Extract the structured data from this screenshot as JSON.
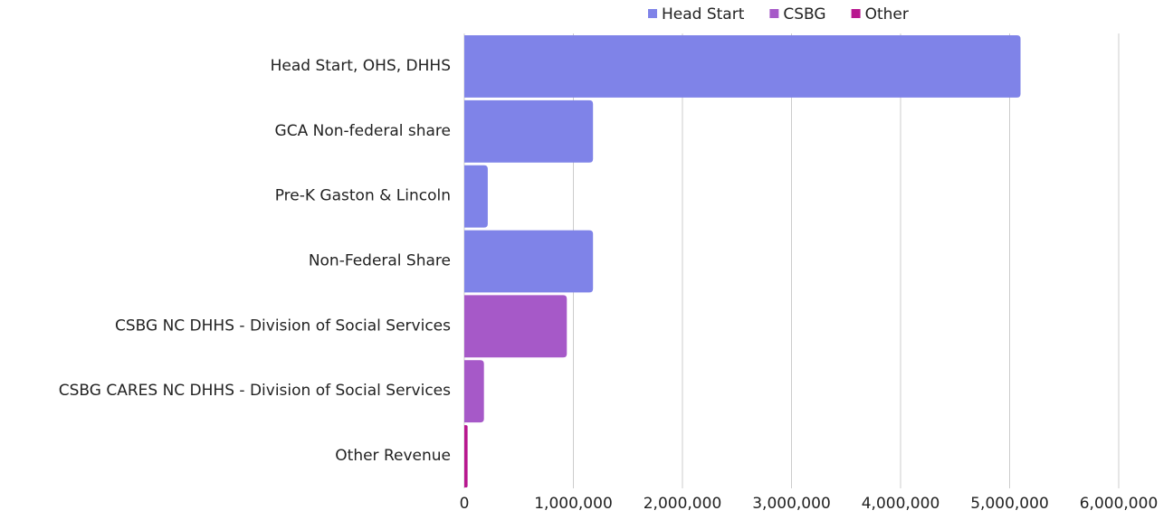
{
  "chart_data": {
    "type": "hbar",
    "categories": [
      "Head Start, OHS, DHHS",
      "GCA Non-federal share",
      "Pre-K Gaston & Lincoln",
      "Non-Federal Share",
      "CSBG NC DHHS - Division of Social Services",
      "CSBG CARES NC DHHS - Division of Social Services",
      "Other Revenue"
    ],
    "series": [
      {
        "name": "Head Start",
        "color": "#7f83e8",
        "values": [
          5100000,
          1180000,
          215000,
          1180000,
          null,
          null,
          null
        ]
      },
      {
        "name": "CSBG",
        "color": "#a659c8",
        "values": [
          null,
          null,
          null,
          null,
          940000,
          180000,
          null
        ]
      },
      {
        "name": "Other",
        "color": "#b8178f",
        "values": [
          null,
          null,
          null,
          null,
          null,
          null,
          30000
        ]
      }
    ],
    "xlim": [
      0,
      6000000
    ],
    "xticks": [
      0,
      {
        "value": 1000000,
        "label": "1,000,000"
      },
      {
        "value": 2000000,
        "label": "2,000,000"
      },
      {
        "value": 3000000,
        "label": "3,000,000"
      },
      {
        "value": 4000000,
        "label": "4,000,000"
      },
      {
        "value": 5000000,
        "label": "5,000,000"
      },
      {
        "value": 6000000,
        "label": "6,000,000"
      }
    ],
    "grid": true,
    "legend": "top"
  }
}
